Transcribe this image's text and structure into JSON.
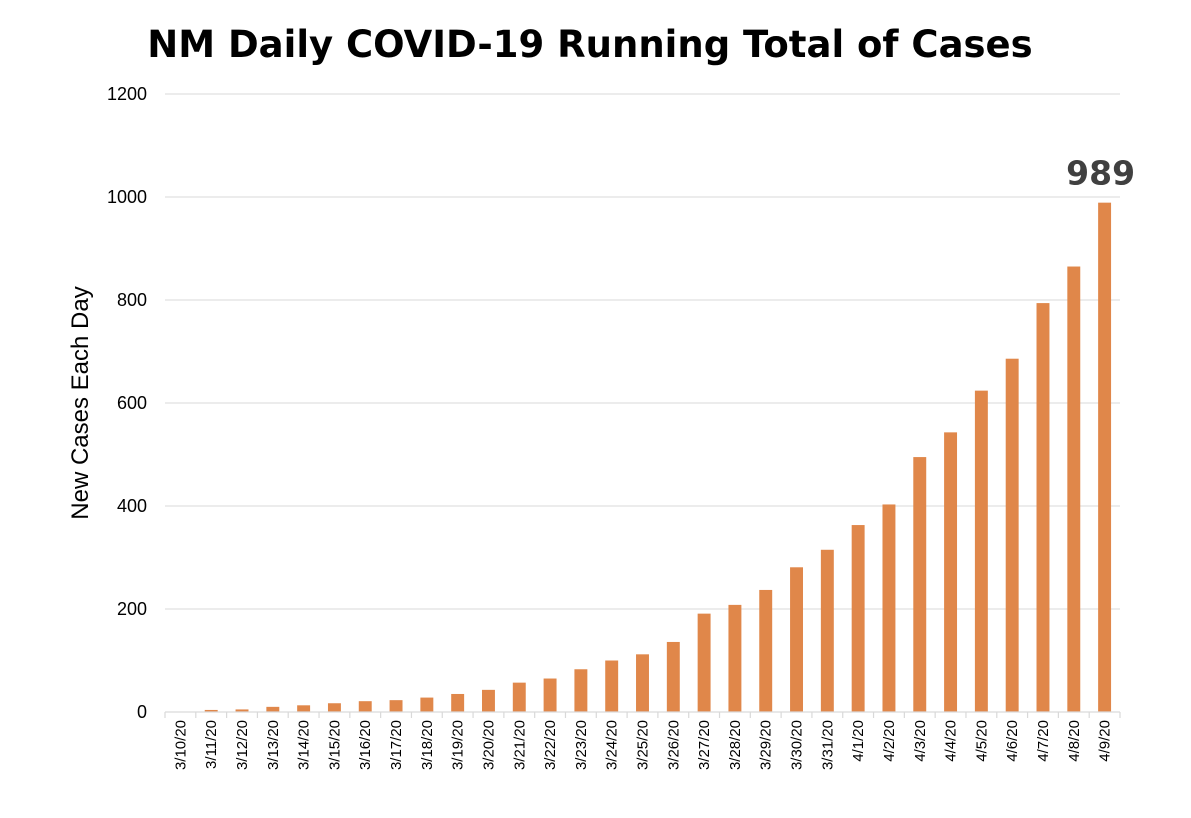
{
  "chart_data": {
    "type": "bar",
    "title": "NM Daily COVID-19 Running Total of Cases",
    "xlabel": "",
    "ylabel": "New Cases Each Day",
    "ylim": [
      0,
      1200
    ],
    "yticks": [
      0,
      200,
      400,
      600,
      800,
      1000,
      1200
    ],
    "grid": true,
    "legend": "none",
    "bar_color": "#e0874a",
    "categories": [
      "3/10/20",
      "3/11/20",
      "3/12/20",
      "3/13/20",
      "3/14/20",
      "3/15/20",
      "3/16/20",
      "3/17/20",
      "3/18/20",
      "3/19/20",
      "3/20/20",
      "3/21/20",
      "3/22/20",
      "3/23/20",
      "3/24/20",
      "3/25/20",
      "3/26/20",
      "3/27/20",
      "3/28/20",
      "3/29/20",
      "3/30/20",
      "3/31/20",
      "4/1/20",
      "4/2/20",
      "4/3/20",
      "4/4/20",
      "4/5/20",
      "4/6/20",
      "4/7/20",
      "4/8/20",
      "4/9/20"
    ],
    "values": [
      0,
      4,
      5,
      10,
      13,
      17,
      21,
      23,
      28,
      35,
      43,
      57,
      65,
      83,
      100,
      112,
      136,
      191,
      208,
      237,
      281,
      315,
      363,
      403,
      495,
      543,
      624,
      686,
      794,
      865,
      989
    ],
    "annotations": [
      {
        "category": "4/9/20",
        "text": "989"
      }
    ]
  }
}
